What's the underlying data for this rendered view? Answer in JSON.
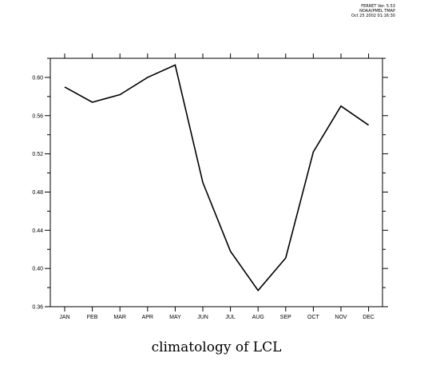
{
  "stamp": {
    "line1": "FERRET Ver. 5.53",
    "line2": "NOAA/PMEL TMAP",
    "line3": "Oct 25 2002 01:16:30"
  },
  "chart_data": {
    "type": "line",
    "title": "climatology of LCL",
    "xlabel": "",
    "ylabel": "",
    "categories": [
      "JAN",
      "FEB",
      "MAR",
      "APR",
      "MAY",
      "JUN",
      "JUL",
      "AUG",
      "SEP",
      "OCT",
      "NOV",
      "DEC"
    ],
    "series": [
      {
        "values": [
          0.59,
          0.574,
          0.582,
          0.6,
          0.613,
          0.49,
          0.418,
          0.377,
          0.411,
          0.522,
          0.57,
          0.55
        ]
      }
    ],
    "ylim": [
      0.36,
      0.62
    ],
    "yticks": [
      "0.60",
      "0.56",
      "0.52",
      "0.48",
      "0.44",
      "0.40",
      "0.36"
    ],
    "grid": false,
    "line_color": "#000000"
  }
}
